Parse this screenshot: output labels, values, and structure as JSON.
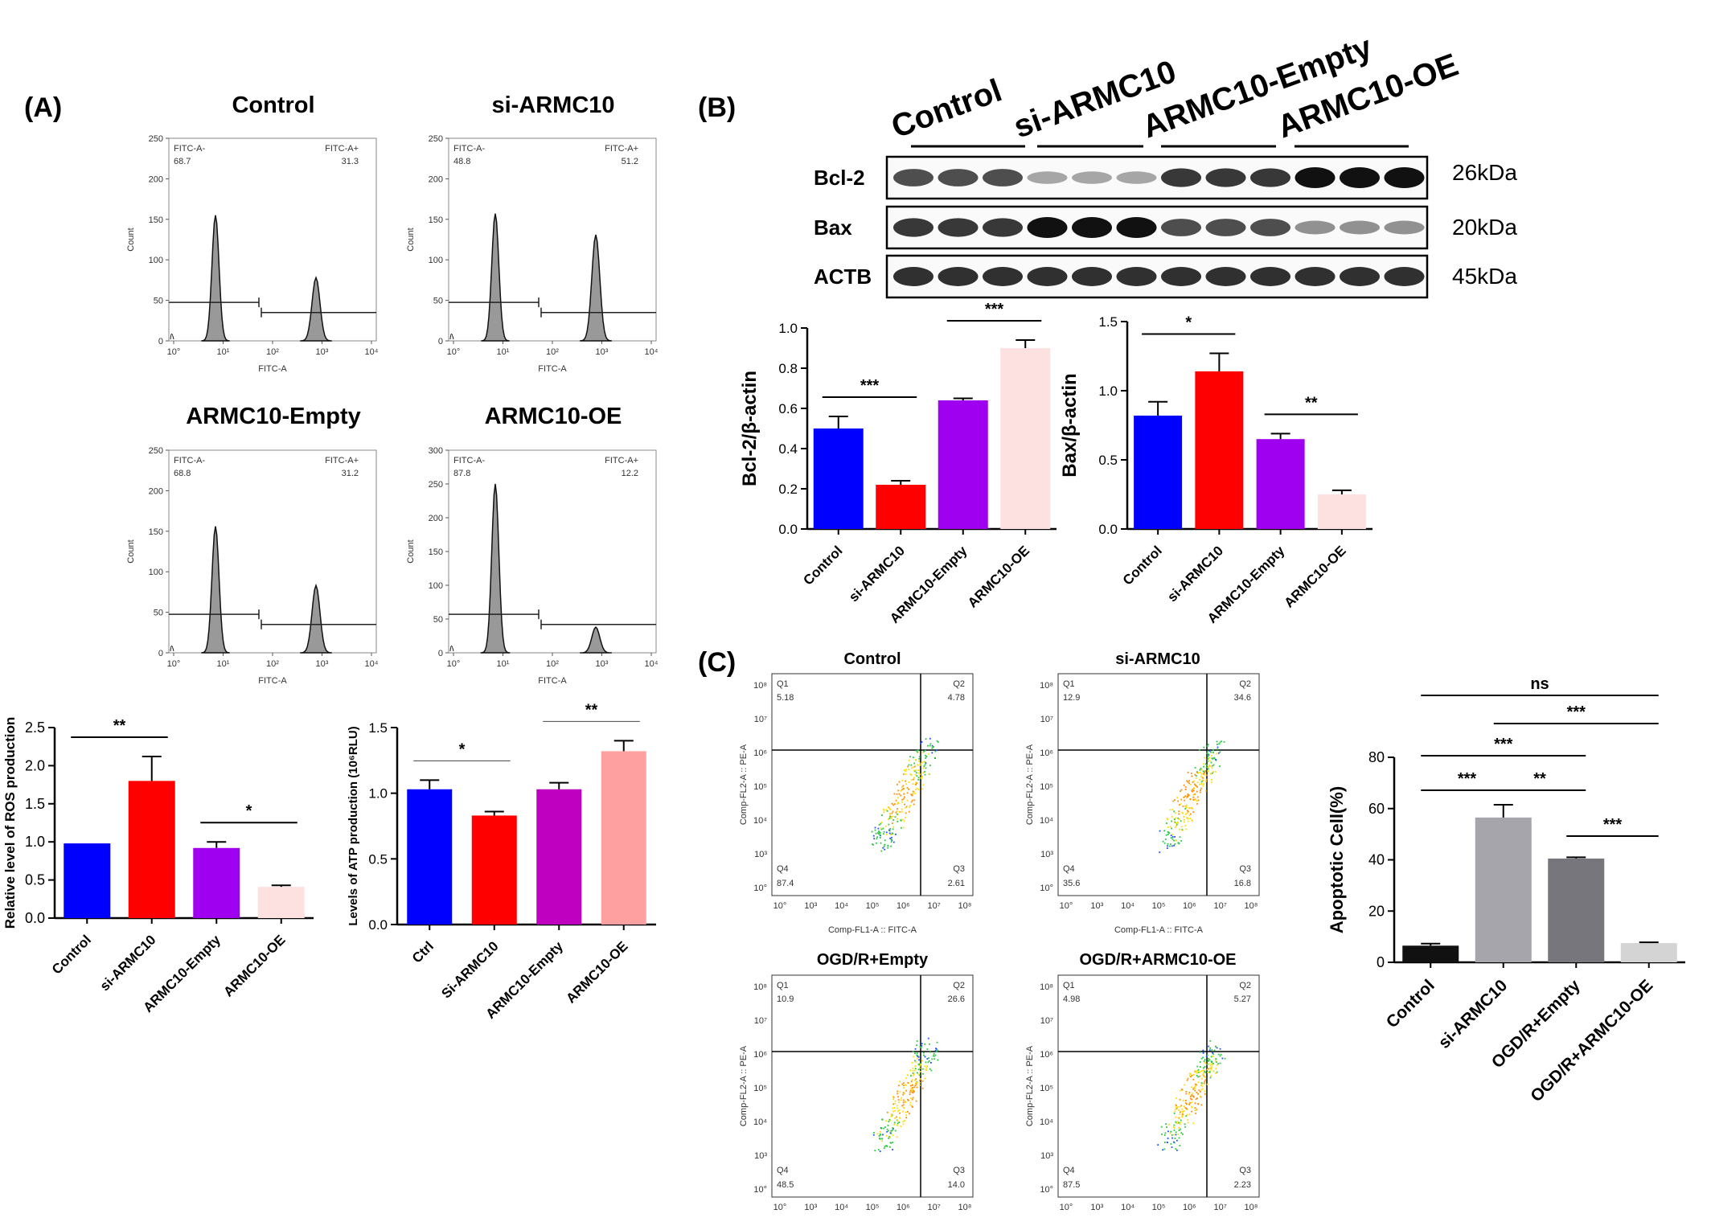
{
  "panels": {
    "A": "(A)",
    "B": "(B)",
    "C": "(C)"
  },
  "histograms": [
    {
      "title": "Control",
      "left_gate": "FITC-A-",
      "left_value": "68.7",
      "right_gate": "FITC-A+",
      "right_value": "31.3",
      "peak_left": 155,
      "peak_right": 78
    },
    {
      "title": "si-ARMC10",
      "left_gate": "FITC-A-",
      "left_value": "48.8",
      "right_gate": "FITC-A+",
      "right_value": "51.2",
      "peak_left": 157,
      "peak_right": 131
    },
    {
      "title": "ARMC10-Empty",
      "left_gate": "FITC-A-",
      "left_value": "68.8",
      "right_gate": "FITC-A+",
      "right_value": "31.2",
      "peak_left": 156,
      "peak_right": 83
    },
    {
      "title": "ARMC10-OE",
      "left_gate": "FITC-A-",
      "left_value": "87.8",
      "right_gate": "FITC-A+",
      "right_value": "12.2",
      "peak_left": 250,
      "peak_right": 38
    }
  ],
  "hist_axes": {
    "xlabel": "FITC-A",
    "ylabel": "Count",
    "xticks": [
      "10°",
      "10¹",
      "10²",
      "10³",
      "10⁴"
    ],
    "yticks_150": [
      "0",
      "50",
      "100",
      "150",
      "200",
      "250"
    ],
    "yticks_300": [
      "0",
      "50",
      "100",
      "150",
      "200",
      "250",
      "300"
    ]
  },
  "western_blot": {
    "groups": [
      "Control",
      "si-ARMC10",
      "ARMC10-Empty",
      "ARMC10-OE"
    ],
    "bands": [
      {
        "name": "Bcl-2",
        "kda": "26kDa",
        "intensity": [
          0.7,
          0.7,
          0.7,
          0.25,
          0.25,
          0.25,
          0.8,
          0.8,
          0.8,
          1.0,
          1.0,
          1.0
        ]
      },
      {
        "name": "Bax",
        "kda": "20kDa",
        "intensity": [
          0.8,
          0.8,
          0.8,
          1.0,
          1.0,
          1.0,
          0.7,
          0.7,
          0.7,
          0.35,
          0.35,
          0.35
        ]
      },
      {
        "name": "ACTB",
        "kda": "45kDa",
        "intensity": [
          0.85,
          0.85,
          0.85,
          0.85,
          0.85,
          0.85,
          0.85,
          0.85,
          0.85,
          0.85,
          0.85,
          0.85
        ]
      }
    ]
  },
  "scatter_plots": [
    {
      "title": "Control",
      "q1": "5.18",
      "q2": "4.78",
      "q3": "2.61",
      "q4": "87.4"
    },
    {
      "title": "si-ARMC10",
      "q1": "12.9",
      "q2": "34.6",
      "q3": "16.8",
      "q4": "35.6"
    },
    {
      "title": "OGD/R+Empty",
      "q1": "10.9",
      "q2": "26.6",
      "q3": "14.0",
      "q4": "48.5"
    },
    {
      "title": "OGD/R+ARMC10-OE",
      "q1": "4.98",
      "q2": "5.27",
      "q3": "2.23",
      "q4": "87.5"
    }
  ],
  "scatter_axes": {
    "xlabel": "Comp-FL1-A :: FITC-A",
    "ylabel": "Comp-FL2-A :: PE-A",
    "quad": [
      "Q1",
      "Q2",
      "Q3",
      "Q4"
    ],
    "ticks": [
      "10°",
      "10³",
      "10⁴",
      "10⁵",
      "10⁶",
      "10⁷",
      "10⁸"
    ]
  },
  "chart_data": [
    {
      "id": "ros",
      "type": "bar",
      "title": "",
      "xlabel": "",
      "ylabel": "Relative level of ROS production",
      "categories": [
        "Control",
        "si-ARMC10",
        "ARMC10-Empty",
        "ARMC10-OE"
      ],
      "values": [
        0.98,
        1.8,
        0.92,
        0.41
      ],
      "errors": [
        0,
        0.32,
        0.08,
        0.02
      ],
      "colors": [
        "#0000ff",
        "#ff0000",
        "#a000f0",
        "#fde0e0"
      ],
      "ylim": [
        0,
        2.5
      ],
      "yticks": [
        "0.0",
        "0.5",
        "1.0",
        "1.5",
        "2.0",
        "2.5"
      ],
      "significance": [
        {
          "from": 0,
          "to": 1,
          "label": "**"
        },
        {
          "from": 2,
          "to": 3,
          "label": "*"
        }
      ]
    },
    {
      "id": "atp",
      "type": "bar",
      "title": "",
      "xlabel": "",
      "ylabel": "Levels of ATP production (10⁶RLU)",
      "categories": [
        "Ctrl",
        "Si-ARMC10",
        "ARMC10-Empty",
        "ARMC10-OE"
      ],
      "values": [
        1.03,
        0.83,
        1.03,
        1.32
      ],
      "errors": [
        0.07,
        0.03,
        0.05,
        0.08
      ],
      "colors": [
        "#0000ff",
        "#ff0000",
        "#c000c0",
        "#ffa0a0"
      ],
      "ylim": [
        0,
        1.5
      ],
      "yticks": [
        "0.0",
        "0.5",
        "1.0",
        "1.5"
      ],
      "significance": [
        {
          "from": 0,
          "to": 1,
          "label": "*"
        },
        {
          "from": 2,
          "to": 3,
          "label": "**"
        }
      ]
    },
    {
      "id": "bcl2",
      "type": "bar",
      "title": "",
      "xlabel": "",
      "ylabel": "Bcl-2/β-actin",
      "categories": [
        "Control",
        "si-ARMC10",
        "ARMC10-Empty",
        "ARMC10-OE"
      ],
      "values": [
        0.5,
        0.22,
        0.64,
        0.9
      ],
      "errors": [
        0.06,
        0.02,
        0.01,
        0.04
      ],
      "colors": [
        "#0000ff",
        "#ff0000",
        "#a000f0",
        "#fde0e0"
      ],
      "ylim": [
        0,
        1.0
      ],
      "yticks": [
        "0.0",
        "0.2",
        "0.4",
        "0.6",
        "0.8",
        "1.0"
      ],
      "significance": [
        {
          "from": 0,
          "to": 1,
          "label": "***"
        },
        {
          "from": 2,
          "to": 3,
          "label": "***"
        }
      ]
    },
    {
      "id": "bax",
      "type": "bar",
      "title": "",
      "xlabel": "",
      "ylabel": "Bax/β-actin",
      "categories": [
        "Control",
        "si-ARMC10",
        "ARMC10-Empty",
        "ARMC10-OE"
      ],
      "values": [
        0.82,
        1.14,
        0.65,
        0.25
      ],
      "errors": [
        0.1,
        0.13,
        0.04,
        0.03
      ],
      "colors": [
        "#0000ff",
        "#ff0000",
        "#a000f0",
        "#fde0e0"
      ],
      "ylim": [
        0,
        1.5
      ],
      "yticks": [
        "0.0",
        "0.5",
        "1.0",
        "1.5"
      ],
      "significance": [
        {
          "from": 0,
          "to": 1,
          "label": "*"
        },
        {
          "from": 2,
          "to": 3,
          "label": "**"
        }
      ]
    },
    {
      "id": "apoptosis",
      "type": "bar",
      "title": "",
      "xlabel": "",
      "ylabel": "Apoptotic Cell(%)",
      "categories": [
        "Control",
        "si-ARMC10",
        "OGD/R+Empty",
        "OGD/R+ARMC10-OE"
      ],
      "values": [
        6.5,
        56.5,
        40.5,
        7.5
      ],
      "errors": [
        0.8,
        5,
        0.5,
        0.3
      ],
      "colors": [
        "#111111",
        "#a5a5ab",
        "#76767c",
        "#d4d4d4"
      ],
      "ylim": [
        0,
        80
      ],
      "yticks": [
        "0",
        "20",
        "40",
        "60",
        "80"
      ],
      "significance": [
        {
          "from": 0,
          "to": 3,
          "label": "ns"
        },
        {
          "from": 1,
          "to": 3,
          "label": "***"
        },
        {
          "from": 0,
          "to": 2,
          "label": "***"
        },
        {
          "from": 0,
          "to": 1,
          "label": "***"
        },
        {
          "from": 1,
          "to": 2,
          "label": "**"
        },
        {
          "from": 2,
          "to": 3,
          "label": "***"
        }
      ]
    }
  ]
}
